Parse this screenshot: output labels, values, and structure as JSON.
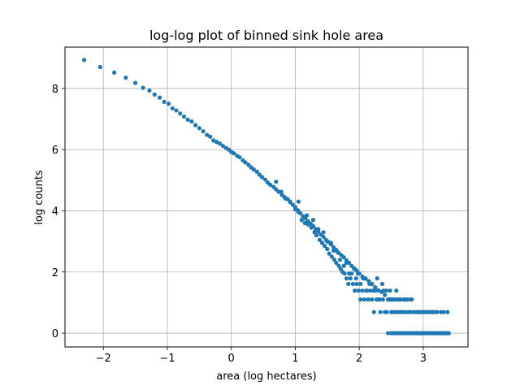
{
  "chart_data": {
    "type": "scatter",
    "title": "log-log plot of binned sink hole area",
    "xlabel": "area (log hectares)",
    "ylabel": "log counts",
    "xlim": [
      -2.6,
      3.7
    ],
    "ylim": [
      -0.45,
      9.35
    ],
    "xticks": [
      -2,
      -1,
      0,
      1,
      2,
      3
    ],
    "xtick_labels": [
      "−2",
      "−1",
      "0",
      "1",
      "2",
      "3"
    ],
    "yticks": [
      0,
      2,
      4,
      6,
      8
    ],
    "ytick_labels": [
      "0",
      "2",
      "4",
      "6",
      "8"
    ],
    "grid": true,
    "color": "#1f77b4",
    "series": [
      {
        "x": [
          -2.3,
          -2.05,
          -1.83,
          -1.65,
          -1.5,
          -1.38,
          -1.28,
          -1.2,
          -1.12,
          -1.05,
          -0.98,
          -0.92,
          -0.86,
          -0.8,
          -0.74,
          -0.68,
          -0.62,
          -0.56,
          -0.5,
          -0.44,
          -0.38,
          -0.33,
          -0.28,
          -0.23,
          -0.18,
          -0.13,
          -0.08,
          -0.04,
          0.0,
          0.04,
          0.09,
          0.13,
          0.18,
          0.22,
          0.27,
          0.31,
          0.35,
          0.4,
          0.44,
          0.48,
          0.53,
          0.57,
          0.61,
          0.66,
          0.7,
          0.74,
          0.79,
          0.83,
          0.88,
          0.92,
          0.96,
          1.0,
          1.04,
          1.08,
          1.12,
          1.16,
          1.2,
          1.24,
          1.28,
          1.32,
          1.36,
          1.4,
          1.44,
          1.48,
          1.52,
          1.56,
          1.6,
          1.64,
          1.68,
          1.72,
          1.76,
          1.8,
          1.84,
          1.88,
          1.92,
          1.96,
          2.0,
          2.05,
          2.1,
          2.15,
          2.2,
          2.25,
          2.3,
          2.35,
          2.4,
          2.45,
          2.5,
          2.55,
          2.6,
          2.65,
          2.7,
          2.75,
          2.8,
          2.85,
          2.9,
          2.95,
          3.0,
          3.05,
          3.1,
          3.15,
          3.2,
          3.25,
          3.3,
          3.35,
          3.4
        ],
        "y": [
          8.93,
          8.7,
          8.52,
          8.35,
          8.18,
          8.02,
          7.93,
          7.8,
          7.7,
          7.56,
          7.5,
          7.35,
          7.28,
          7.18,
          7.08,
          6.98,
          6.92,
          6.8,
          6.7,
          6.6,
          6.48,
          6.42,
          6.3,
          6.25,
          6.2,
          6.12,
          6.05,
          6.0,
          5.92,
          5.88,
          5.8,
          5.75,
          5.65,
          5.58,
          5.5,
          5.42,
          5.35,
          5.28,
          5.18,
          5.1,
          5.02,
          4.92,
          4.85,
          4.78,
          4.7,
          4.62,
          4.52,
          4.45,
          4.38,
          4.28,
          4.2,
          4.12,
          4.02,
          3.92,
          3.82,
          3.75,
          3.65,
          3.58,
          3.5,
          3.4,
          3.32,
          3.22,
          3.15,
          3.05,
          2.98,
          2.9,
          2.8,
          2.72,
          2.62,
          2.55,
          2.48,
          2.38,
          2.3,
          2.2,
          2.12,
          2.05,
          1.95,
          1.85,
          1.78,
          1.7,
          1.6,
          1.5,
          1.4,
          1.35,
          1.25,
          1.1,
          1.1,
          1.1,
          1.1,
          1.1,
          1.1,
          1.1,
          1.1,
          0.69,
          0.69,
          0.69,
          0.69,
          0.69,
          0.69,
          0.69,
          0.69,
          0.0,
          0.0,
          0.0,
          0.0
        ]
      },
      {
        "x": [
          0.7,
          0.78,
          0.85,
          0.92,
          1.0,
          1.05,
          1.1,
          1.15,
          1.2,
          1.25,
          1.3,
          1.33,
          1.38,
          1.42,
          1.46,
          1.5,
          1.53,
          1.57,
          1.61,
          1.64,
          1.68,
          1.71,
          1.74,
          1.77,
          1.8,
          1.83,
          1.86,
          1.9,
          1.93,
          1.96,
          1.99,
          2.02,
          2.05,
          2.08,
          2.11,
          2.14,
          2.17,
          2.2,
          2.23,
          2.27,
          2.3,
          2.33,
          2.37,
          2.4,
          2.43,
          2.47,
          2.5,
          2.53,
          2.57,
          2.6,
          2.64,
          2.68,
          2.72,
          2.76,
          2.8,
          2.85,
          2.9,
          2.95,
          3.0,
          3.05,
          3.1,
          3.15,
          3.2,
          3.25,
          3.3,
          3.35
        ],
        "y": [
          4.95,
          4.62,
          4.4,
          4.3,
          4.05,
          3.95,
          3.7,
          3.6,
          3.55,
          3.45,
          3.3,
          3.2,
          3.05,
          2.95,
          2.85,
          2.75,
          2.6,
          2.5,
          2.4,
          2.3,
          2.2,
          2.1,
          2.0,
          1.95,
          1.79,
          1.61,
          1.79,
          1.61,
          1.39,
          1.61,
          1.39,
          1.1,
          1.39,
          1.1,
          1.39,
          1.1,
          1.39,
          1.1,
          0.69,
          1.1,
          1.1,
          0.69,
          1.1,
          0.69,
          0.69,
          1.1,
          0.69,
          0.69,
          0.69,
          0.69,
          0.69,
          0.69,
          0.69,
          0.69,
          0.69,
          0.0,
          0.0,
          0.0,
          0.0,
          0.0,
          0.0,
          0.0,
          0.0,
          0.0,
          0.0,
          0.0
        ]
      },
      {
        "x": [
          1.05,
          1.18,
          1.28,
          1.36,
          1.44,
          1.5,
          1.56,
          1.6,
          1.66,
          1.7,
          1.76,
          1.8,
          1.84,
          1.88,
          1.92,
          1.95,
          1.98,
          2.02,
          2.06,
          2.1,
          2.12,
          2.16,
          2.2,
          2.22,
          2.26,
          2.28,
          2.32,
          2.36,
          2.38,
          2.42,
          2.46,
          2.48,
          2.52,
          2.56,
          2.58,
          2.62,
          2.66,
          2.7,
          2.74,
          2.78,
          2.82,
          2.86,
          2.92,
          2.96,
          3.02,
          3.06,
          3.12,
          3.16,
          3.22,
          3.28,
          3.32,
          3.38
        ],
        "y": [
          4.3,
          3.85,
          3.7,
          3.4,
          3.3,
          3.0,
          2.95,
          2.7,
          2.65,
          2.4,
          2.2,
          2.3,
          1.95,
          1.95,
          2.1,
          1.79,
          1.95,
          1.61,
          1.79,
          1.79,
          1.39,
          1.61,
          1.61,
          1.39,
          1.39,
          1.79,
          1.1,
          1.61,
          1.39,
          1.39,
          1.1,
          1.39,
          1.1,
          1.1,
          1.39,
          1.1,
          0.69,
          1.1,
          1.1,
          0.69,
          1.1,
          0.69,
          0.69,
          0.69,
          0.69,
          0.69,
          0.69,
          0.69,
          0.69,
          0.69,
          0.69,
          0.69
        ]
      },
      {
        "x": [
          2.45,
          2.5,
          2.55,
          2.6,
          2.65,
          2.7,
          2.75,
          2.8,
          2.85,
          2.9,
          2.95,
          3.0,
          3.05,
          3.1,
          3.15,
          3.2,
          3.25,
          3.3,
          3.35,
          3.38,
          2.52,
          2.62,
          2.72,
          2.82,
          2.92,
          3.02,
          3.12,
          3.22,
          3.32,
          2.58,
          2.68,
          2.78,
          2.88,
          2.98,
          3.08,
          3.18,
          3.28
        ],
        "y": [
          0.0,
          0.0,
          0.0,
          0.0,
          0.0,
          0.0,
          0.0,
          0.0,
          0.0,
          0.0,
          0.0,
          0.0,
          0.0,
          0.0,
          0.0,
          0.0,
          0.0,
          0.0,
          0.0,
          0.0,
          0.0,
          0.0,
          0.0,
          0.0,
          0.0,
          0.0,
          0.0,
          0.0,
          0.0,
          0.0,
          0.0,
          0.0,
          0.0,
          0.0,
          0.0,
          0.0,
          0.0
        ]
      }
    ]
  }
}
